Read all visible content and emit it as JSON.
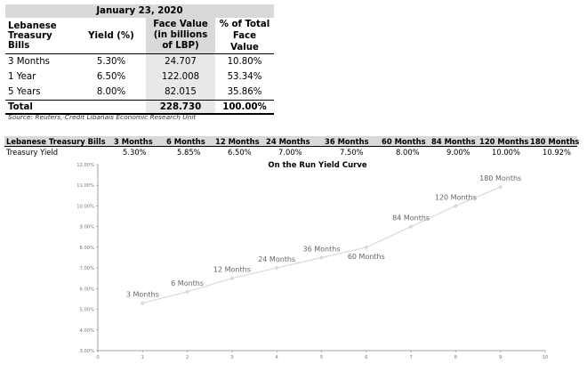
{
  "table": {
    "date": "January 23, 2020",
    "headers": {
      "bills": [
        "Lebanese",
        "Treasury",
        "Bills"
      ],
      "yield": "Yield (%)",
      "face_value": [
        "Face Value",
        "(in billions",
        "of LBP)"
      ],
      "pct": [
        "% of Total",
        "Face Value"
      ]
    },
    "rows": [
      {
        "tenor": "3 Months",
        "yield": "5.30%",
        "face_value": "24.707",
        "pct": "10.80%"
      },
      {
        "tenor": "1 Year",
        "yield": "6.50%",
        "face_value": "122.008",
        "pct": "53.34%"
      },
      {
        "tenor": "5 Years",
        "yield": "8.00%",
        "face_value": "82.015",
        "pct": "35.86%"
      }
    ],
    "total": {
      "label": "Total",
      "face_value": "228.730",
      "pct": "100.00%"
    },
    "source": "Source: Reuters, Credit Libanais Economic Research Unit"
  },
  "strip": {
    "header_label": "Lebanese Treasury Bills",
    "row_label": "Treasury Yield",
    "tenors": [
      "3 Months",
      "6 Months",
      "12 Months",
      "24 Months",
      "36 Months",
      "60 Months",
      "84 Months",
      "120 Months",
      "180 Months"
    ],
    "yields": [
      "5.30%",
      "5.85%",
      "6.50%",
      "7.00%",
      "7.50%",
      "8.00%",
      "9.00%",
      "10.00%",
      "10.92%"
    ]
  },
  "chart_data": {
    "type": "line",
    "title": "On the Run Yield Curve",
    "x": [
      1,
      2,
      3,
      4,
      5,
      6,
      7,
      8,
      9
    ],
    "series": [
      {
        "values": [
          5.3,
          5.85,
          6.5,
          7.0,
          7.5,
          8.0,
          9.0,
          10.0,
          10.92
        ]
      }
    ],
    "point_labels": [
      "3 Months",
      "6 Months",
      "12 Months",
      "24 Months",
      "36 Months",
      "60 Months",
      "84 Months",
      "120 Months",
      "180 Months"
    ],
    "xlim": [
      0,
      10
    ],
    "ylim": [
      3,
      12
    ],
    "x_ticks": [
      "0",
      "1",
      "2",
      "3",
      "4",
      "5",
      "6",
      "7",
      "8",
      "9",
      "10"
    ],
    "y_ticks": [
      "3.00%",
      "4.00%",
      "5.00%",
      "6.00%",
      "7.00%",
      "8.00%",
      "9.00%",
      "10.00%",
      "11.00%",
      "12.00%"
    ],
    "grid": false,
    "line_color": "#d9d9d9"
  }
}
